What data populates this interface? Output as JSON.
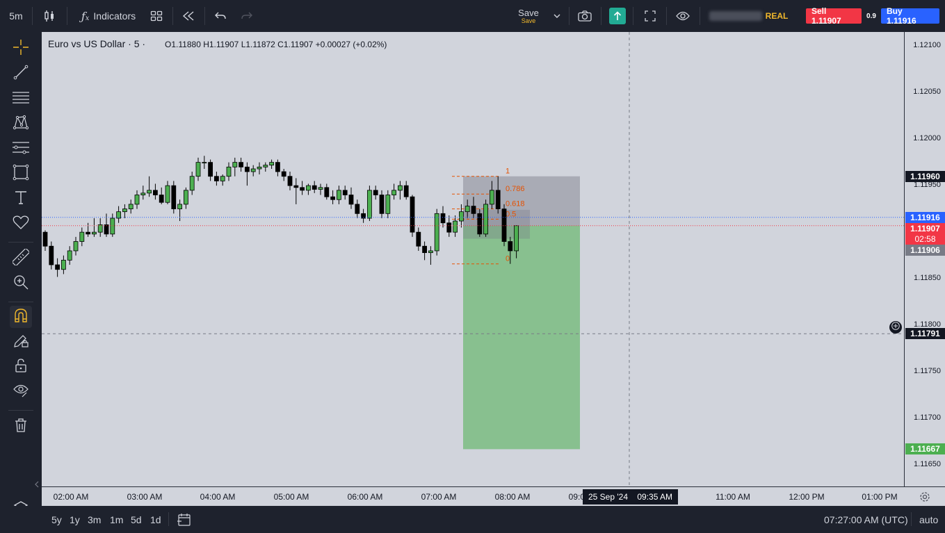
{
  "toolbar": {
    "interval": "5m",
    "indicators_label": "Indicators",
    "save_label": "Save",
    "save_sublabel": "Save",
    "account_type": "REAL",
    "sell_label": "Sell 1.11907",
    "spread": "0.9",
    "buy_label": "Buy 1.11916",
    "colors": {
      "sell": "#f23645",
      "buy": "#2962ff",
      "publish": "#22ab94",
      "real": "#f2b92c"
    }
  },
  "legend": {
    "symbol": "Euro vs US Dollar · 5 ·",
    "ohlc": "O1.11880  H1.11907  L1.11872  C1.11907  +0.00027 (+0.02%)"
  },
  "price_axis": {
    "ticks": [
      "1.12100",
      "1.12050",
      "1.12000",
      "1.11950",
      "1.11900",
      "1.11850",
      "1.11800",
      "1.11750",
      "1.11700",
      "1.11650"
    ],
    "tags": {
      "fib_top": "1.11960",
      "ask": "1.11916",
      "bid": "1.11907",
      "countdown": "02:58",
      "hover": "1.11906",
      "crosshair": "1.11791",
      "target": "1.11667"
    }
  },
  "time_axis": {
    "ticks": [
      "02:00 AM",
      "03:00 AM",
      "04:00 AM",
      "05:00 AM",
      "06:00 AM",
      "07:00 AM",
      "08:00 AM",
      "09:00 AM",
      "10:00 AM",
      "11:00 AM",
      "12:00 PM",
      "01:00 PM"
    ],
    "crosshair_label": "25 Sep '24    09:35 AM"
  },
  "fib_levels": [
    {
      "label": "1",
      "price": 1.1196
    },
    {
      "label": "0.786",
      "price": 1.11941
    },
    {
      "label": "0.618",
      "price": 1.11925
    },
    {
      "label": "0.5",
      "price": 1.11914
    },
    {
      "label": "0",
      "price": 1.11866
    }
  ],
  "bottom_bar": {
    "ranges": [
      "5y",
      "1y",
      "3m",
      "1m",
      "5d",
      "1d"
    ],
    "clock": "07:27:00 AM (UTC)",
    "scale_mode": "auto"
  },
  "icons": [
    "crosshair-icon",
    "trend-line-icon",
    "horizontal-lines-icon",
    "pattern-icon",
    "fib-icon",
    "rectangle-icon",
    "text-icon",
    "heart-icon",
    "ruler-icon",
    "zoom-icon",
    "magnet-icon",
    "pencil-lock-icon",
    "lock-icon",
    "eye-icon",
    "trash-icon",
    "layers-icon"
  ],
  "chart_data": {
    "type": "candlestick",
    "candles": [
      [
        1.119,
        1.11902,
        1.1188,
        1.11885
      ],
      [
        1.11885,
        1.1189,
        1.1186,
        1.11865
      ],
      [
        1.11865,
        1.11872,
        1.11852,
        1.1186
      ],
      [
        1.1186,
        1.11875,
        1.11855,
        1.1187
      ],
      [
        1.1187,
        1.11885,
        1.11865,
        1.1188
      ],
      [
        1.1188,
        1.11895,
        1.11875,
        1.1189
      ],
      [
        1.1189,
        1.11905,
        1.11885,
        1.119
      ],
      [
        1.119,
        1.1191,
        1.11895,
        1.11898
      ],
      [
        1.11898,
        1.11915,
        1.11895,
        1.119
      ],
      [
        1.119,
        1.11915,
        1.11895,
        1.11908
      ],
      [
        1.11908,
        1.1192,
        1.11895,
        1.11898
      ],
      [
        1.11898,
        1.1192,
        1.11895,
        1.11915
      ],
      [
        1.11915,
        1.11928,
        1.1191,
        1.11922
      ],
      [
        1.11922,
        1.1193,
        1.11915,
        1.11925
      ],
      [
        1.11925,
        1.11935,
        1.1192,
        1.1193
      ],
      [
        1.1193,
        1.11945,
        1.11925,
        1.1194
      ],
      [
        1.1194,
        1.1195,
        1.11935,
        1.11942
      ],
      [
        1.11942,
        1.1196,
        1.11938,
        1.11945
      ],
      [
        1.11945,
        1.11952,
        1.11935,
        1.1194
      ],
      [
        1.1194,
        1.11948,
        1.1193,
        1.11932
      ],
      [
        1.11932,
        1.11955,
        1.1193,
        1.1195
      ],
      [
        1.1195,
        1.11955,
        1.1192,
        1.11925
      ],
      [
        1.11925,
        1.11935,
        1.11912,
        1.1193
      ],
      [
        1.1193,
        1.11948,
        1.11925,
        1.11945
      ],
      [
        1.11945,
        1.11965,
        1.1194,
        1.1196
      ],
      [
        1.1196,
        1.1198,
        1.11955,
        1.11975
      ],
      [
        1.11975,
        1.11982,
        1.11968,
        1.11975
      ],
      [
        1.11975,
        1.11978,
        1.11955,
        1.1196
      ],
      [
        1.1196,
        1.11965,
        1.1195,
        1.11955
      ],
      [
        1.11955,
        1.11962,
        1.1195,
        1.1196
      ],
      [
        1.1196,
        1.11975,
        1.11955,
        1.1197
      ],
      [
        1.1197,
        1.1198,
        1.1196,
        1.11975
      ],
      [
        1.11975,
        1.1198,
        1.11965,
        1.1197
      ],
      [
        1.1197,
        1.11975,
        1.1195,
        1.11965
      ],
      [
        1.11965,
        1.11972,
        1.1196,
        1.11968
      ],
      [
        1.11968,
        1.11975,
        1.11962,
        1.1197
      ],
      [
        1.1197,
        1.11975,
        1.11965,
        1.11972
      ],
      [
        1.11972,
        1.11978,
        1.11968,
        1.11975
      ],
      [
        1.11975,
        1.11978,
        1.1196,
        1.11965
      ],
      [
        1.11965,
        1.11968,
        1.11955,
        1.1196
      ],
      [
        1.1196,
        1.11965,
        1.11945,
        1.1195
      ],
      [
        1.1195,
        1.11958,
        1.1193,
        1.11948
      ],
      [
        1.11948,
        1.11955,
        1.1194,
        1.11945
      ],
      [
        1.11945,
        1.11952,
        1.1194,
        1.1195
      ],
      [
        1.1195,
        1.11955,
        1.11942,
        1.11946
      ],
      [
        1.11946,
        1.11952,
        1.1194,
        1.11948
      ],
      [
        1.11948,
        1.11952,
        1.11935,
        1.11938
      ],
      [
        1.11938,
        1.11945,
        1.1193,
        1.11935
      ],
      [
        1.11935,
        1.1195,
        1.1193,
        1.11945
      ],
      [
        1.11945,
        1.1195,
        1.11935,
        1.1194
      ],
      [
        1.1194,
        1.11948,
        1.11925,
        1.1193
      ],
      [
        1.1193,
        1.11935,
        1.11915,
        1.1192
      ],
      [
        1.1192,
        1.11925,
        1.1191,
        1.11915
      ],
      [
        1.11915,
        1.1195,
        1.11912,
        1.11945
      ],
      [
        1.11945,
        1.1195,
        1.11935,
        1.1194
      ],
      [
        1.1194,
        1.11945,
        1.11915,
        1.1192
      ],
      [
        1.1192,
        1.11945,
        1.11915,
        1.1194
      ],
      [
        1.1194,
        1.11952,
        1.11935,
        1.11945
      ],
      [
        1.11945,
        1.11955,
        1.11935,
        1.1195
      ],
      [
        1.1195,
        1.11955,
        1.11935,
        1.11938
      ],
      [
        1.11938,
        1.1194,
        1.11895,
        1.119
      ],
      [
        1.119,
        1.11905,
        1.1188,
        1.11885
      ],
      [
        1.11885,
        1.1189,
        1.1187,
        1.11878
      ],
      [
        1.11878,
        1.11885,
        1.11865,
        1.1188
      ],
      [
        1.1188,
        1.11925,
        1.11875,
        1.1192
      ],
      [
        1.1192,
        1.11928,
        1.11905,
        1.1191
      ],
      [
        1.1191,
        1.11918,
        1.11895,
        1.119
      ],
      [
        1.119,
        1.11918,
        1.11895,
        1.11912
      ],
      [
        1.11912,
        1.1193,
        1.11905,
        1.11922
      ],
      [
        1.11922,
        1.11935,
        1.11915,
        1.11928
      ],
      [
        1.11928,
        1.11938,
        1.11915,
        1.1192
      ],
      [
        1.1192,
        1.11925,
        1.11895,
        1.11898
      ],
      [
        1.11898,
        1.11935,
        1.11895,
        1.1193
      ],
      [
        1.1193,
        1.11955,
        1.11925,
        1.11945
      ],
      [
        1.11945,
        1.1196,
        1.1192,
        1.11925
      ],
      [
        1.11925,
        1.1193,
        1.11885,
        1.1189
      ],
      [
        1.1189,
        1.11895,
        1.11866,
        1.1188
      ],
      [
        1.1188,
        1.11907,
        1.11872,
        1.11907
      ]
    ]
  }
}
